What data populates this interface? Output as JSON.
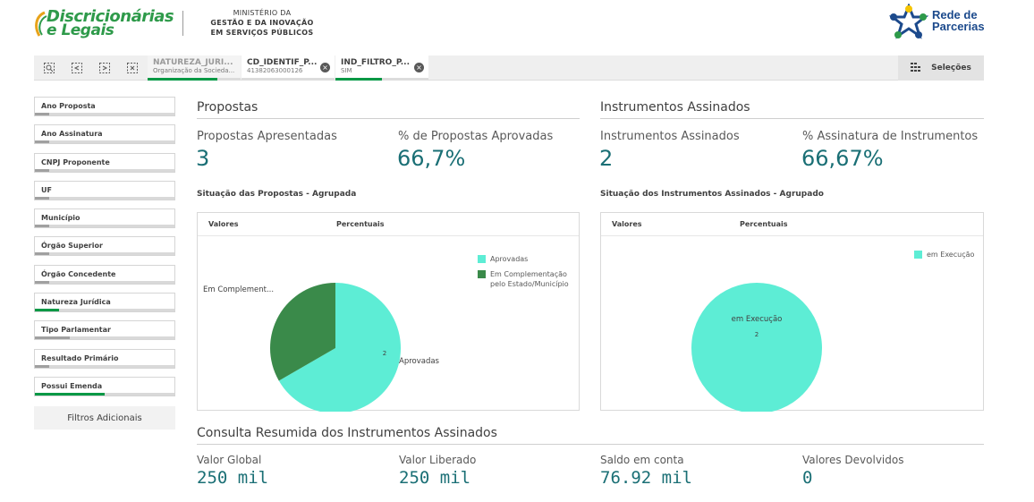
{
  "header": {
    "logo_line1": "Discricionárias",
    "logo_line2": "e Legais",
    "ministry_line1": "MINISTÉRIO DA",
    "ministry_line2": "GESTÃO E DA INOVAÇÃO",
    "ministry_line3": "EM SERVIÇOS PÚBLICOS",
    "partner_line1": "Rede de",
    "partner_line2": "Parcerias"
  },
  "toolbar": {
    "tools": [
      "smart-search-icon",
      "step-back-icon",
      "step-forward-icon",
      "clear-selections-icon"
    ],
    "selections": [
      {
        "name": "NATUREZA_JURI...",
        "value": "Organização da Socieda...",
        "fill_pct": 75
      },
      {
        "name": "CD_IDENTIF_P...",
        "value": "41382063000126",
        "fill_pct": 0
      },
      {
        "name": "IND_FILTRO_P...",
        "value": "SIM",
        "fill_pct": 50
      }
    ],
    "selecoes_label": "Seleções"
  },
  "sidebar": {
    "filters": [
      {
        "label": "Ano Proposta",
        "fill_pct": 10,
        "color": "#a0a0a0"
      },
      {
        "label": "Ano Assinatura",
        "fill_pct": 10,
        "color": "#a0a0a0"
      },
      {
        "label": "CNPJ Proponente",
        "fill_pct": 10,
        "color": "#a0a0a0"
      },
      {
        "label": "UF",
        "fill_pct": 10,
        "color": "#a0a0a0"
      },
      {
        "label": "Município",
        "fill_pct": 10,
        "color": "#a0a0a0"
      },
      {
        "label": "Órgão Superior",
        "fill_pct": 10,
        "color": "#a0a0a0"
      },
      {
        "label": "Órgão Concedente",
        "fill_pct": 10,
        "color": "#a0a0a0"
      },
      {
        "label": "Natureza Jurídica",
        "fill_pct": 17,
        "color": "#009845"
      },
      {
        "label": "Tipo Parlamentar",
        "fill_pct": 25,
        "color": "#a0a0a0"
      },
      {
        "label": "Resultado Primário",
        "fill_pct": 10,
        "color": "#a0a0a0"
      },
      {
        "label": "Possui Emenda",
        "fill_pct": 50,
        "color": "#009845"
      }
    ],
    "more_filters": "Filtros Adicionais"
  },
  "propostas": {
    "title": "Propostas",
    "kpi1_label": "Propostas Apresentadas",
    "kpi1_value": "3",
    "kpi2_label": "% de Propostas Aprovadas",
    "kpi2_value": "66,7%",
    "chart_title": "Situação das Propostas - Agrupada",
    "tab_valores": "Valores",
    "tab_percentuais": "Percentuais"
  },
  "instrumentos": {
    "title": "Instrumentos Assinados",
    "kpi1_label": "Instrumentos Assinados",
    "kpi1_value": "2",
    "kpi2_label": "% Assinatura de Instrumentos",
    "kpi2_value": "66,67%",
    "chart_title": "Situação dos Instrumentos Assinados - Agrupado",
    "tab_valores": "Valores",
    "tab_percentuais": "Percentuais"
  },
  "consulta": {
    "title": "Consulta Resumida dos Instrumentos Assinados",
    "items": [
      {
        "label": "Valor Global",
        "value": "250 mil"
      },
      {
        "label": "Valor Liberado",
        "value": "250 mil"
      },
      {
        "label": "Saldo em conta",
        "value": "76.92 mil"
      },
      {
        "label": "Valores Devolvidos",
        "value": "0"
      }
    ]
  },
  "colors": {
    "aprovadas": "#5dedd5",
    "complementacao": "#3a8a4a",
    "execucao": "#5dedd5",
    "kpi": "#1a6f75",
    "brand_green": "#009845"
  },
  "chart_data": [
    {
      "type": "pie",
      "title": "Situação das Propostas - Agrupada",
      "categories": [
        "Aprovadas",
        "Em Complementação pelo Estado/Município"
      ],
      "values": [
        2,
        1
      ],
      "slice_labels": [
        "Aprovadas",
        "Em Complement..."
      ],
      "legend_position": "right"
    },
    {
      "type": "pie",
      "title": "Situação dos Instrumentos Assinados - Agrupado",
      "categories": [
        "em Execução"
      ],
      "values": [
        2
      ],
      "slice_labels": [
        "em Execução"
      ],
      "legend_position": "top-right"
    }
  ]
}
